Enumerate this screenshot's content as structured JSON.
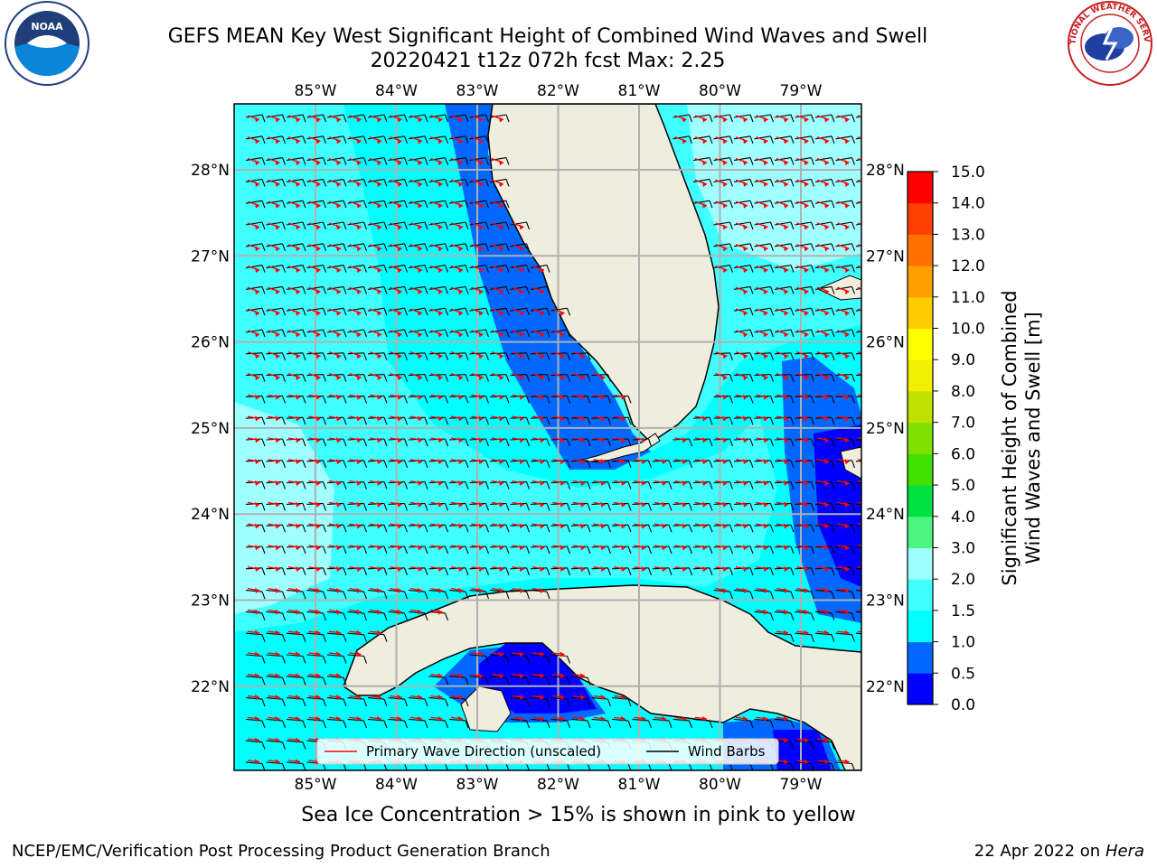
{
  "title_line1": "GEFS MEAN Key West Significant Height of Combined Wind Waves and Swell",
  "title_line2": "20220421 t12z 072h fcst   Max: 2.25",
  "map": {
    "lon_ticks": [
      "85°W",
      "84°W",
      "83°W",
      "82°W",
      "81°W",
      "80°W",
      "79°W"
    ],
    "lat_ticks": [
      "28°N",
      "27°N",
      "26°N",
      "25°N",
      "24°N",
      "23°N",
      "22°N"
    ],
    "legend": {
      "wave_dir_label": "Primary Wave Direction (unscaled)",
      "wind_barb_label": "Wind Barbs"
    }
  },
  "colorbar": {
    "label_line1": "Significant Height of Combined",
    "label_line2": "Wind Waves and Swell [m]",
    "ticks": [
      "0.0",
      "0.5",
      "1.0",
      "1.5",
      "2.0",
      "3.0",
      "4.0",
      "5.0",
      "6.0",
      "7.0",
      "8.0",
      "9.0",
      "10.0",
      "11.0",
      "12.0",
      "13.0",
      "14.0",
      "15.0"
    ],
    "colors": [
      "#0000ff",
      "#0068ff",
      "#00ffff",
      "#40ffff",
      "#a0ffff",
      "#4cf580",
      "#00e040",
      "#40e000",
      "#80e000",
      "#c0e000",
      "#f0f000",
      "#ffff00",
      "#ffcc00",
      "#ffa000",
      "#ff7000",
      "#ff4000",
      "#ff0000"
    ]
  },
  "note": "Sea Ice Concentration > 15% is shown in pink to yellow",
  "footer_left": "NCEP/EMC/Verification Post Processing Product Generation Branch",
  "footer_right_prefix": "22 Apr 2022 on ",
  "footer_right_host": "Hera",
  "logos": {
    "noaa_text": "NOAA",
    "nws_ring_text": "NATIONAL WEATHER SERVICE"
  },
  "colors": {
    "land": "#efedde",
    "wave_arrow": "#ff0000",
    "wind_barb": "#000000",
    "grid": "#b0b0b0"
  }
}
